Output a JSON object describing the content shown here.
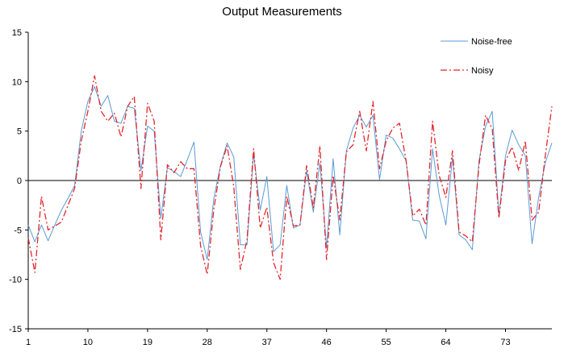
{
  "chart_data": {
    "type": "line",
    "title": "Output Measurements",
    "xlabel": "",
    "ylabel": "",
    "ylim": [
      -15,
      15
    ],
    "yticks": [
      -15,
      -10,
      -5,
      0,
      5,
      10,
      15
    ],
    "xlim": [
      1,
      80
    ],
    "xtick_labels": [
      "1",
      "10",
      "19",
      "28",
      "37",
      "46",
      "55",
      "64",
      "73"
    ],
    "grid": false,
    "legend_position": "top-right",
    "series": [
      {
        "name": "Noise-free",
        "color": "#5B9BD5",
        "style": "solid",
        "x": [
          1,
          2,
          3,
          4,
          5,
          6,
          7,
          8,
          9,
          10,
          11,
          12,
          13,
          14,
          15,
          16,
          17,
          18,
          19,
          20,
          21,
          22,
          23,
          24,
          25,
          26,
          27,
          28,
          29,
          30,
          31,
          32,
          33,
          34,
          35,
          36,
          37,
          38,
          39,
          40,
          41,
          42,
          43,
          44,
          45,
          46,
          47,
          48,
          49,
          50,
          51,
          52,
          53,
          54,
          55,
          56,
          57,
          58,
          59,
          60,
          61,
          62,
          63,
          64,
          65,
          66,
          67,
          68,
          69,
          70,
          71,
          72,
          73,
          74,
          75,
          76,
          77,
          78,
          79,
          80
        ],
        "values": [
          -4.5,
          -6.2,
          -4.5,
          -6.1,
          -4.5,
          -3.0,
          -1.8,
          -0.5,
          5.0,
          8.0,
          9.5,
          7.5,
          8.6,
          6.0,
          5.8,
          7.5,
          7.3,
          1.0,
          5.5,
          5.0,
          -3.8,
          1.3,
          0.9,
          0.4,
          2.1,
          3.9,
          -5.2,
          -8.0,
          -1.8,
          1.5,
          3.8,
          2.4,
          -6.5,
          -6.5,
          2.7,
          -3.0,
          0.4,
          -7.2,
          -6.5,
          -0.5,
          -4.8,
          -4.5,
          1.0,
          -3.2,
          1.8,
          -6.8,
          2.2,
          -5.5,
          3.0,
          5.3,
          6.6,
          5.4,
          6.6,
          0.1,
          4.6,
          4.3,
          3.2,
          2.0,
          -4.0,
          -4.1,
          -5.9,
          3.2,
          -1.5,
          -4.5,
          2.4,
          -5.5,
          -6.0,
          -7.0,
          2.0,
          5.5,
          7.0,
          -3.5,
          2.5,
          5.1,
          3.6,
          2.5,
          -6.4,
          -1.7,
          1.8,
          3.8
        ]
      },
      {
        "name": "Noisy",
        "color": "#E3262B",
        "style": "dashdot",
        "x": [
          1,
          2,
          3,
          4,
          5,
          6,
          7,
          8,
          9,
          10,
          11,
          12,
          13,
          14,
          15,
          16,
          17,
          18,
          19,
          20,
          21,
          22,
          23,
          24,
          25,
          26,
          27,
          28,
          29,
          30,
          31,
          32,
          33,
          34,
          35,
          36,
          37,
          38,
          39,
          40,
          41,
          42,
          43,
          44,
          45,
          46,
          47,
          48,
          49,
          50,
          51,
          52,
          53,
          54,
          55,
          56,
          57,
          58,
          59,
          60,
          61,
          62,
          63,
          64,
          65,
          66,
          67,
          68,
          69,
          70,
          71,
          72,
          73,
          74,
          75,
          76,
          77,
          78,
          79,
          80
        ],
        "values": [
          -5.8,
          -9.3,
          -1.6,
          -5.0,
          -4.6,
          -4.2,
          -2.5,
          -0.8,
          4.0,
          7.0,
          10.6,
          7.0,
          6.0,
          6.8,
          4.4,
          7.5,
          8.5,
          -0.8,
          7.8,
          6.0,
          -6.0,
          1.6,
          0.8,
          1.9,
          1.2,
          1.2,
          -6.6,
          -9.5,
          -2.9,
          1.4,
          3.5,
          -0.6,
          -9.0,
          -6.0,
          3.2,
          -4.8,
          -2.7,
          -8.3,
          -10.0,
          -1.6,
          -4.6,
          -4.5,
          1.5,
          -2.8,
          3.5,
          -8.0,
          0.5,
          -4.0,
          2.9,
          3.6,
          7.0,
          3.0,
          8.0,
          1.2,
          4.0,
          5.3,
          5.8,
          2.0,
          -3.6,
          -2.9,
          -4.5,
          6.0,
          0.5,
          -1.7,
          3.0,
          -5.2,
          -5.6,
          -6.2,
          1.5,
          6.6,
          5.2,
          -3.8,
          2.0,
          3.4,
          1.0,
          4.0,
          -4.0,
          -3.2,
          2.5,
          7.5
        ]
      }
    ]
  }
}
